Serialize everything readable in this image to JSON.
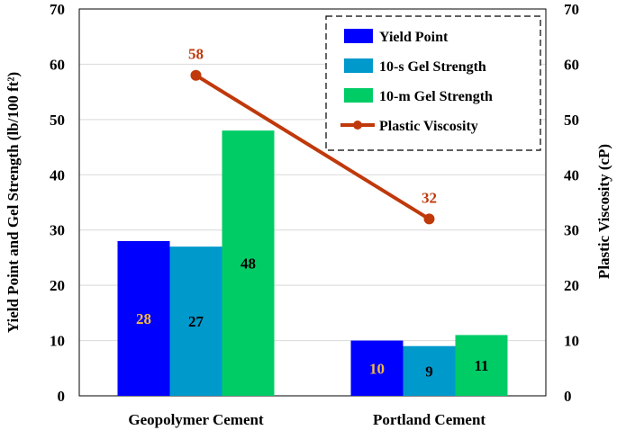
{
  "chart_data": {
    "type": "bar",
    "categories": [
      "Geopolymer Cement",
      "Portland Cement"
    ],
    "series": [
      {
        "name": "Yield Point",
        "values": [
          28,
          10
        ],
        "color": "#0000FF",
        "label_color": "#F5B841"
      },
      {
        "name": "10-s Gel Strength",
        "values": [
          27,
          9
        ],
        "color": "#0099CC",
        "label_color": "#000000"
      },
      {
        "name": "10-m Gel Strength",
        "values": [
          48,
          11
        ],
        "color": "#00CC66",
        "label_color": "#000000"
      }
    ],
    "line_series": {
      "name": "Plastic Viscosity",
      "values": [
        58,
        32
      ],
      "color": "#C0390B",
      "axis": "right"
    },
    "ylabel": "Yield Point and Gel Strength (lb/100 ft²)",
    "y2label": "Plastic Viscosity (cP)",
    "ylim": [
      0,
      70
    ],
    "y2lim": [
      0,
      70
    ],
    "yticks": [
      "0",
      "10",
      "20",
      "30",
      "40",
      "50",
      "60",
      "70"
    ],
    "grid": true,
    "legend_position": "top-right"
  }
}
